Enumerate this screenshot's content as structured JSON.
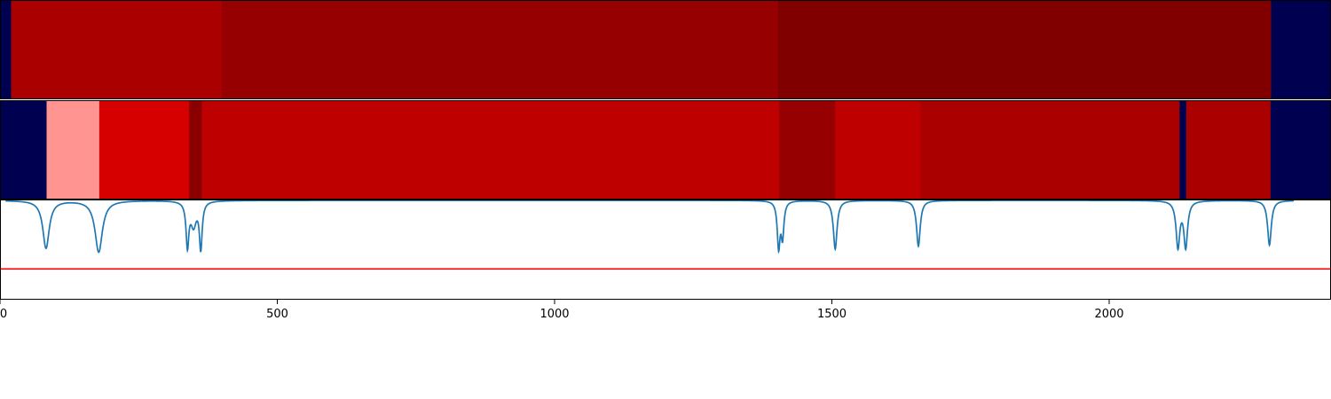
{
  "chart_data": [
    {
      "panel": "top-band",
      "type": "heatmap",
      "x_range": [
        0,
        2400
      ],
      "colors": {
        "navy": "#000050",
        "c1": "#aa0000",
        "c2": "#960000",
        "c3": "#800000"
      },
      "segments": [
        {
          "start": 0,
          "end": 20,
          "color": "#000050"
        },
        {
          "start": 20,
          "end": 400,
          "color": "#aa0000"
        },
        {
          "start": 400,
          "end": 1403,
          "color": "#960000"
        },
        {
          "start": 1403,
          "end": 2292,
          "color": "#800000"
        },
        {
          "start": 2292,
          "end": 2400,
          "color": "#000050"
        }
      ]
    },
    {
      "panel": "middle-band",
      "type": "heatmap",
      "x_range": [
        0,
        2400
      ],
      "segments": [
        {
          "start": 0,
          "end": 84,
          "color": "#000050"
        },
        {
          "start": 84,
          "end": 179,
          "color": "#ff9490"
        },
        {
          "start": 179,
          "end": 341,
          "color": "#d60000"
        },
        {
          "start": 341,
          "end": 364,
          "color": "#8a0000"
        },
        {
          "start": 364,
          "end": 1405,
          "color": "#be0000"
        },
        {
          "start": 1405,
          "end": 1506,
          "color": "#960000"
        },
        {
          "start": 1506,
          "end": 1660,
          "color": "#be0000"
        },
        {
          "start": 1660,
          "end": 2127,
          "color": "#aa0000"
        },
        {
          "start": 2127,
          "end": 2139,
          "color": "#000050"
        },
        {
          "start": 2139,
          "end": 2291,
          "color": "#aa0000"
        },
        {
          "start": 2291,
          "end": 2400,
          "color": "#000050"
        }
      ]
    },
    {
      "panel": "signal",
      "type": "line",
      "x_range": [
        0,
        2400
      ],
      "y_range": [
        0,
        1
      ],
      "baseline": 1.0,
      "line_color": "#1f77b4",
      "threshold": {
        "y": 0.31,
        "color": "#ff0000"
      },
      "dips": [
        {
          "center": 83,
          "depth": 0.48,
          "width": 7
        },
        {
          "center": 178,
          "depth": 0.52,
          "width": 8
        },
        {
          "center": 338,
          "depth": 0.44,
          "width": 3
        },
        {
          "center": 349,
          "depth": 0.24,
          "width": 6
        },
        {
          "center": 362,
          "depth": 0.47,
          "width": 3
        },
        {
          "center": 1404,
          "depth": 0.46,
          "width": 3
        },
        {
          "center": 1411,
          "depth": 0.35,
          "width": 3
        },
        {
          "center": 1506,
          "depth": 0.49,
          "width": 4
        },
        {
          "center": 1656,
          "depth": 0.46,
          "width": 4
        },
        {
          "center": 2124,
          "depth": 0.46,
          "width": 4
        },
        {
          "center": 2138,
          "depth": 0.46,
          "width": 4
        },
        {
          "center": 2289,
          "depth": 0.45,
          "width": 4
        }
      ],
      "xticks": [
        0,
        500,
        1000,
        1500,
        2000
      ]
    }
  ]
}
